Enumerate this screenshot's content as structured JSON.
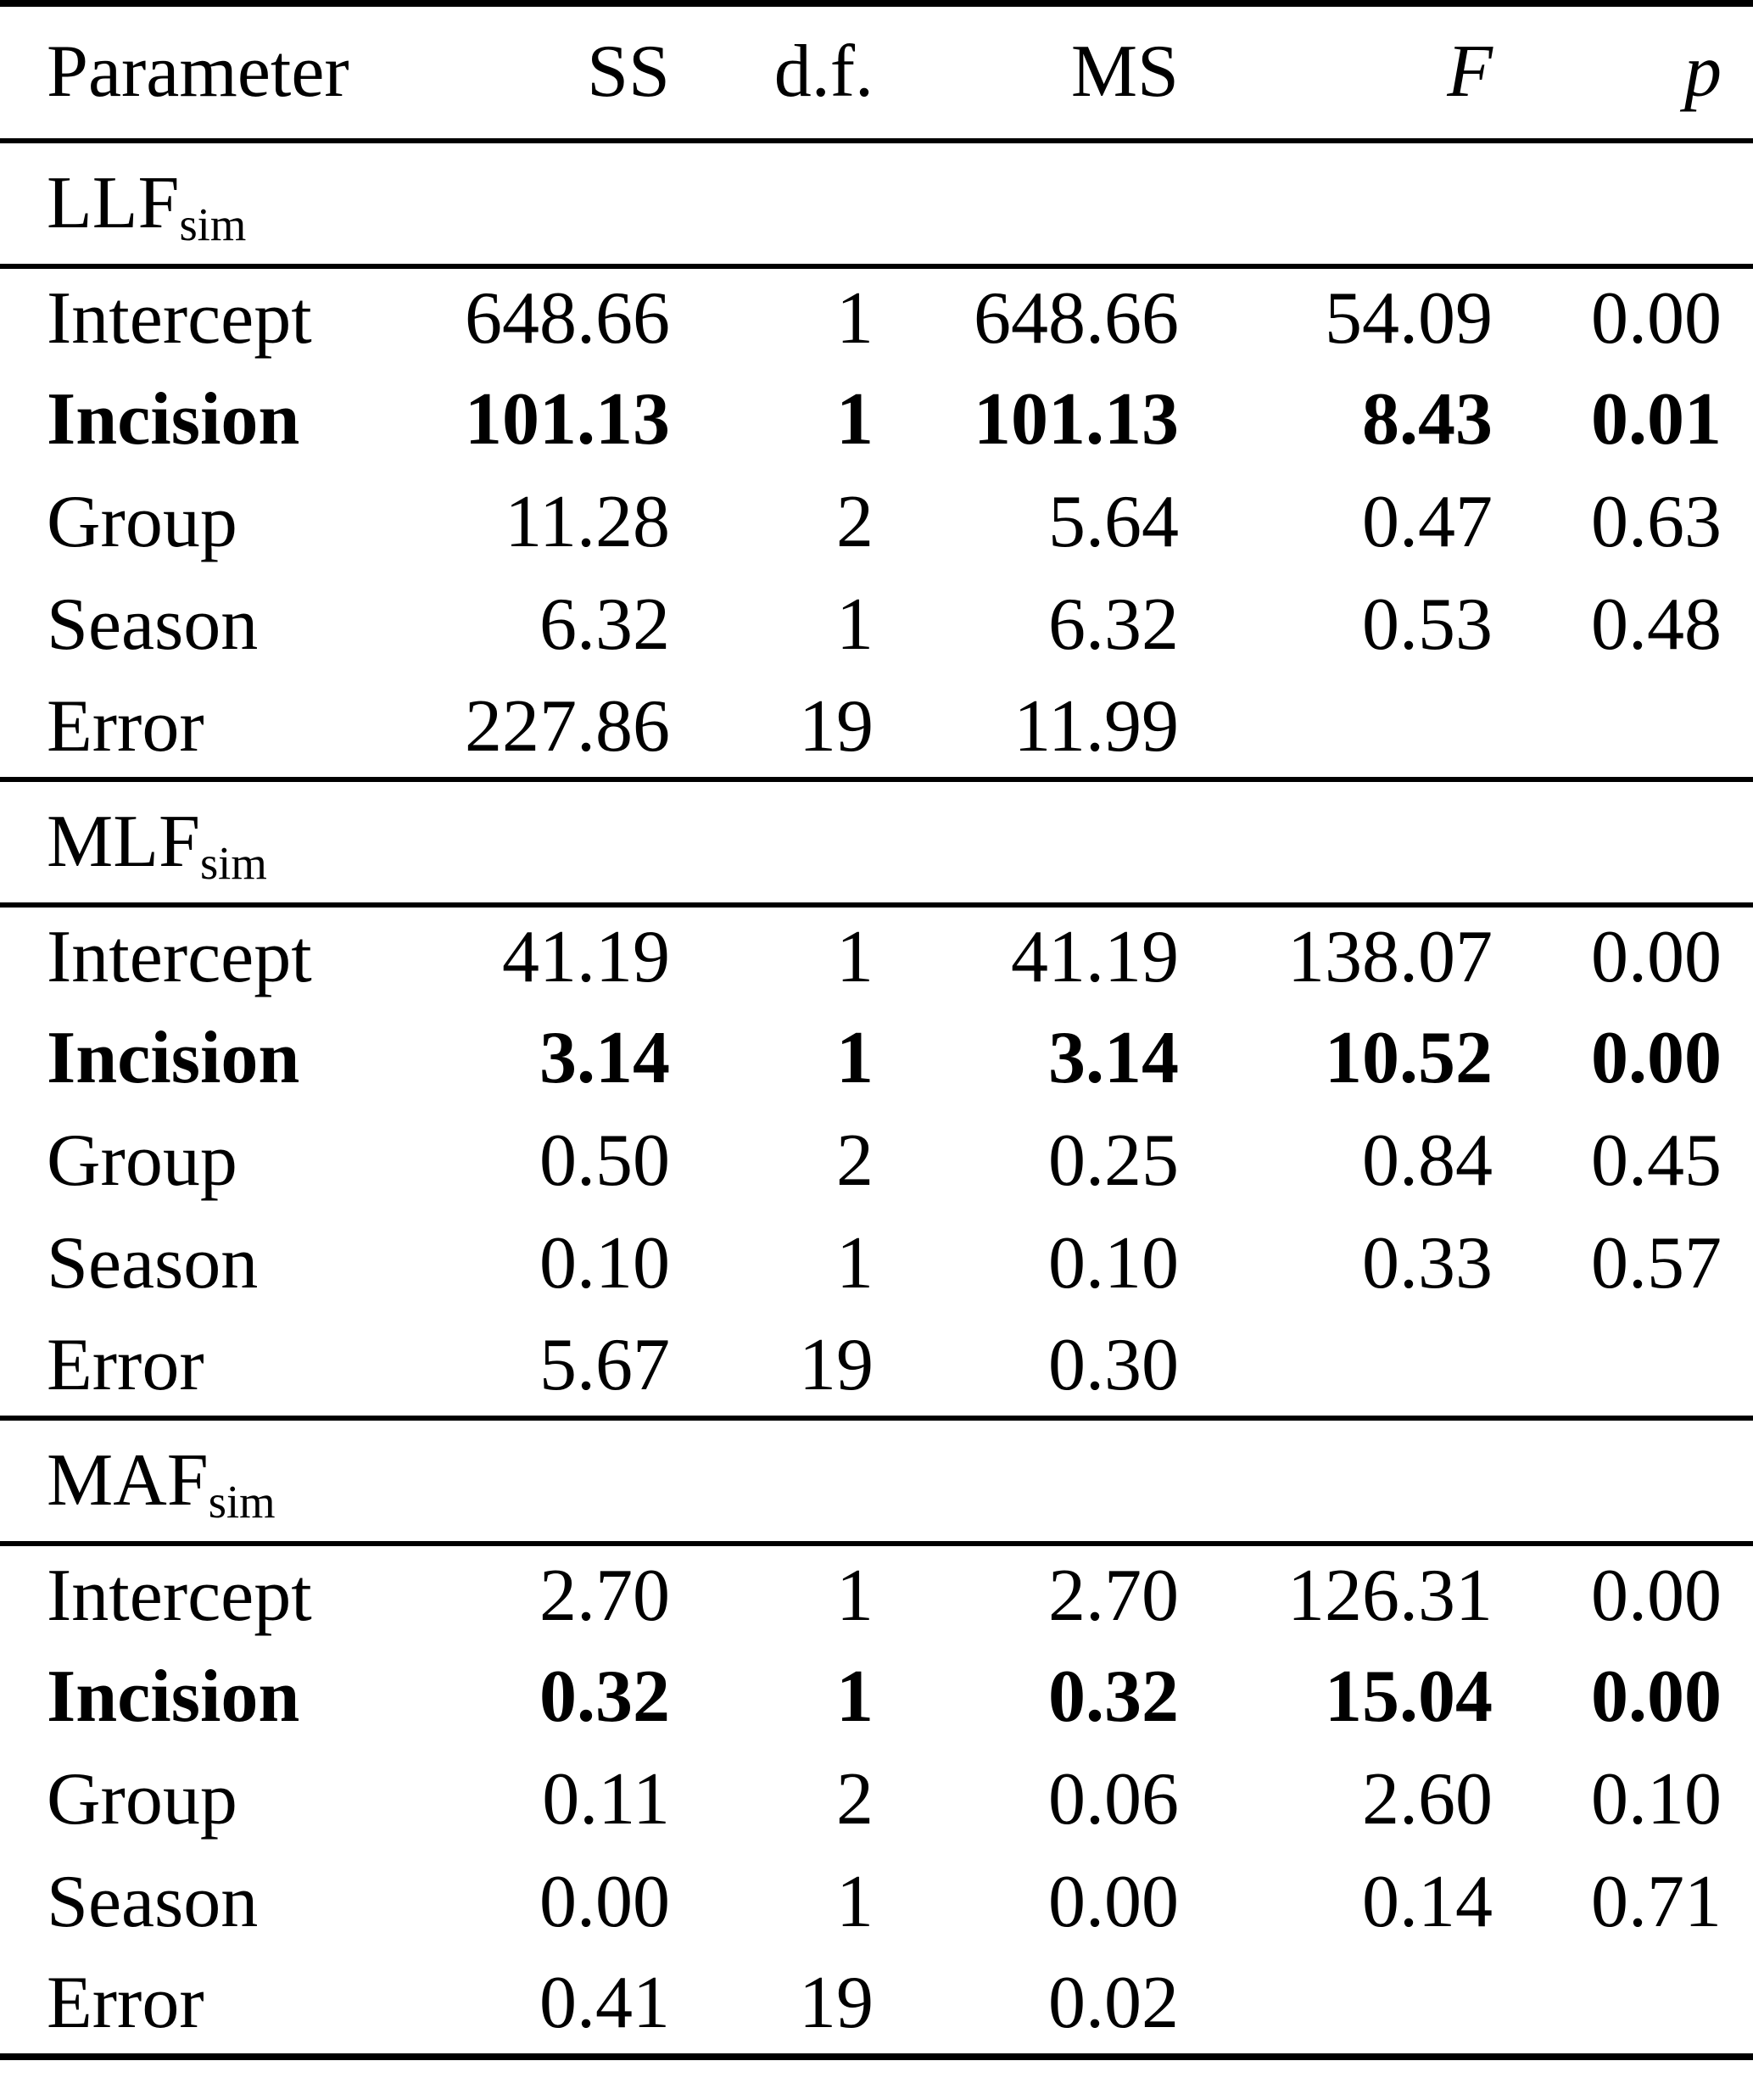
{
  "page": {
    "background_color": "#ffffff",
    "text_color": "#000000"
  },
  "table": {
    "columns": {
      "parameter": "Parameter",
      "ss": "SS",
      "df": "d.f.",
      "ms": "MS",
      "f": "F",
      "p": "p"
    },
    "sections": [
      {
        "title": {
          "base": "LLF",
          "subscript": "sim"
        },
        "rows": [
          {
            "parameter": "Intercept",
            "ss": "648.66",
            "df": "1",
            "ms": "648.66",
            "f": "54.09",
            "p": "0.00",
            "emphasis": false
          },
          {
            "parameter": "Incision",
            "ss": "101.13",
            "df": "1",
            "ms": "101.13",
            "f": "8.43",
            "p": "0.01",
            "emphasis": true
          },
          {
            "parameter": "Group",
            "ss": "11.28",
            "df": "2",
            "ms": "5.64",
            "f": "0.47",
            "p": "0.63",
            "emphasis": false
          },
          {
            "parameter": "Season",
            "ss": "6.32",
            "df": "1",
            "ms": "6.32",
            "f": "0.53",
            "p": "0.48",
            "emphasis": false
          },
          {
            "parameter": "Error",
            "ss": "227.86",
            "df": "19",
            "ms": "11.99",
            "f": "",
            "p": "",
            "emphasis": false
          }
        ]
      },
      {
        "title": {
          "base": "MLF",
          "subscript": "sim"
        },
        "rows": [
          {
            "parameter": "Intercept",
            "ss": "41.19",
            "df": "1",
            "ms": "41.19",
            "f": "138.07",
            "p": "0.00",
            "emphasis": false
          },
          {
            "parameter": "Incision",
            "ss": "3.14",
            "df": "1",
            "ms": "3.14",
            "f": "10.52",
            "p": "0.00",
            "emphasis": true
          },
          {
            "parameter": "Group",
            "ss": "0.50",
            "df": "2",
            "ms": "0.25",
            "f": "0.84",
            "p": "0.45",
            "emphasis": false
          },
          {
            "parameter": "Season",
            "ss": "0.10",
            "df": "1",
            "ms": "0.10",
            "f": "0.33",
            "p": "0.57",
            "emphasis": false
          },
          {
            "parameter": "Error",
            "ss": "5.67",
            "df": "19",
            "ms": "0.30",
            "f": "",
            "p": "",
            "emphasis": false
          }
        ]
      },
      {
        "title": {
          "base": "MAF",
          "subscript": "sim"
        },
        "rows": [
          {
            "parameter": "Intercept",
            "ss": "2.70",
            "df": "1",
            "ms": "2.70",
            "f": "126.31",
            "p": "0.00",
            "emphasis": false
          },
          {
            "parameter": "Incision",
            "ss": "0.32",
            "df": "1",
            "ms": "0.32",
            "f": "15.04",
            "p": "0.00",
            "emphasis": true
          },
          {
            "parameter": "Group",
            "ss": "0.11",
            "df": "2",
            "ms": "0.06",
            "f": "2.60",
            "p": "0.10",
            "emphasis": false
          },
          {
            "parameter": "Season",
            "ss": "0.00",
            "df": "1",
            "ms": "0.00",
            "f": "0.14",
            "p": "0.71",
            "emphasis": false
          },
          {
            "parameter": "Error",
            "ss": "0.41",
            "df": "19",
            "ms": "0.02",
            "f": "",
            "p": "",
            "emphasis": false
          }
        ]
      }
    ]
  }
}
